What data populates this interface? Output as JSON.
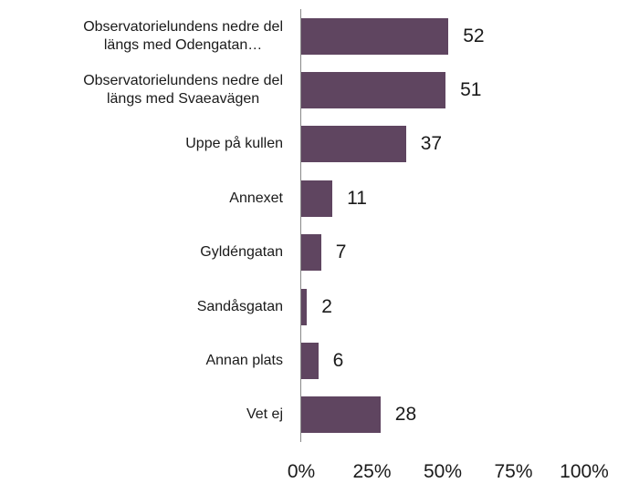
{
  "chart_data": {
    "type": "barh",
    "categories": [
      "Observatorielundens nedre del\nlängs med Odengatan…",
      "Observatorielundens nedre del\nlängs med Svaeavägen",
      "Uppe på kullen",
      "Annexet",
      "Gyldéngatan",
      "Sandåsgatan",
      "Annan plats",
      "Vet ej"
    ],
    "values": [
      52,
      51,
      37,
      11,
      7,
      2,
      6,
      28
    ],
    "color": "#5f4560",
    "xlim": [
      0,
      100
    ],
    "xticks": [
      {
        "value": 0,
        "label": "0%"
      },
      {
        "value": 25,
        "label": "25%"
      },
      {
        "value": 50,
        "label": "50%"
      },
      {
        "value": 75,
        "label": "75%"
      },
      {
        "value": 100,
        "label": "100%"
      }
    ],
    "grid": false
  }
}
